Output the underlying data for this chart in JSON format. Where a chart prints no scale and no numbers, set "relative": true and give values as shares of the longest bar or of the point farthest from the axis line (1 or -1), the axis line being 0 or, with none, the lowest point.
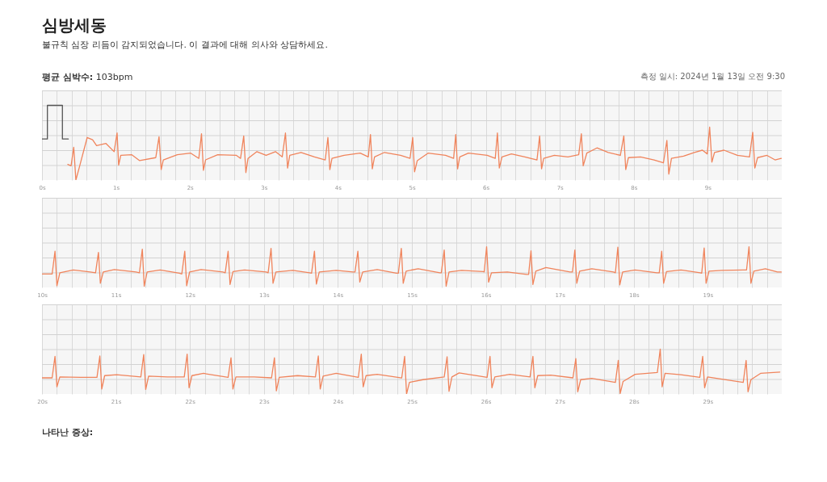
{
  "chart_data": [
    {
      "type": "line",
      "title": "심방세동",
      "subtitle": "불규칙 심장 리듬이 감지되었습니다. 이 결과에 대해 의사와 상담하세요.",
      "annotations": [
        "평균 심박수: 103bpm",
        "측정 일시: 2024년 1월 13일 오전 9:30"
      ],
      "relative": true,
      "grid": true,
      "xlim": [
        0,
        10
      ],
      "xticks": [
        {
          "value": 0,
          "label": "0s"
        },
        {
          "value": 0.2,
          "label": null
        },
        {
          "value": 0.4,
          "label": null
        },
        {
          "value": 0.6,
          "label": null
        },
        {
          "value": 0.8,
          "label": null
        },
        {
          "value": 1,
          "label": "1s"
        },
        {
          "value": 1.2,
          "label": null
        },
        {
          "value": 1.4,
          "label": null
        },
        {
          "value": 1.6,
          "label": null
        },
        {
          "value": 1.8,
          "label": null
        },
        {
          "value": 2,
          "label": "2s"
        },
        {
          "value": 2.2,
          "label": null
        },
        {
          "value": 2.4,
          "label": null
        },
        {
          "value": 2.6,
          "label": null
        },
        {
          "value": 2.8,
          "label": null
        },
        {
          "value": 3,
          "label": "3s"
        },
        {
          "value": 3.2,
          "label": null
        },
        {
          "value": 3.4,
          "label": null
        },
        {
          "value": 3.6,
          "label": null
        },
        {
          "value": 3.8,
          "label": null
        },
        {
          "value": 4,
          "label": "4s"
        },
        {
          "value": 4.2,
          "label": null
        },
        {
          "value": 4.4,
          "label": null
        },
        {
          "value": 4.6,
          "label": null
        },
        {
          "value": 4.8,
          "label": null
        },
        {
          "value": 5,
          "label": "5s"
        },
        {
          "value": 5.2,
          "label": null
        },
        {
          "value": 5.4,
          "label": null
        },
        {
          "value": 5.6,
          "label": null
        },
        {
          "value": 5.8,
          "label": null
        },
        {
          "value": 6,
          "label": "6s"
        },
        {
          "value": 6.2,
          "label": null
        },
        {
          "value": 6.4,
          "label": null
        },
        {
          "value": 6.6,
          "label": null
        },
        {
          "value": 6.8,
          "label": null
        },
        {
          "value": 7,
          "label": "7s"
        },
        {
          "value": 7.2,
          "label": null
        },
        {
          "value": 7.4,
          "label": null
        },
        {
          "value": 7.6,
          "label": null
        },
        {
          "value": 7.8,
          "label": null
        },
        {
          "value": 8,
          "label": "8s"
        },
        {
          "value": 8.2,
          "label": null
        },
        {
          "value": 8.4,
          "label": null
        },
        {
          "value": 8.6,
          "label": null
        },
        {
          "value": 8.8,
          "label": null
        },
        {
          "value": 9,
          "label": "9s"
        },
        {
          "value": 9.2,
          "label": null
        },
        {
          "value": 9.4,
          "label": null
        },
        {
          "value": 9.6,
          "label": null
        },
        {
          "value": 9.8,
          "label": null
        }
      ],
      "series": [
        {
          "color": "#555555",
          "x": [
            0,
            0.073,
            0.073,
            0.276,
            0.276,
            0.356
          ],
          "values": [
            0.55,
            0.55,
            1,
            1,
            0.55,
            0.55
          ]
        },
        {
          "color": "#f0845c",
          "x": [
            0.349,
            0.393,
            0.429,
            0.458,
            0.502,
            0.611,
            0.684,
            0.738,
            0.865,
            0.975,
            1.015,
            1.036,
            1.065,
            1.211,
            1.32,
            1.538,
            1.582,
            1.611,
            1.64,
            1.829,
            2.011,
            2.12,
            2.156,
            2.182,
            2.211,
            2.375,
            2.629,
            2.684,
            2.727,
            2.756,
            2.785,
            2.905,
            3.029,
            3.156,
            3.247,
            3.291,
            3.32,
            3.349,
            3.502,
            3.684,
            3.829,
            3.865,
            3.891,
            3.92,
            4.084,
            4.302,
            4.411,
            4.44,
            4.465,
            4.495,
            4.629,
            4.847,
            4.975,
            5.011,
            5.036,
            5.073,
            5.218,
            5.455,
            5.564,
            5.593,
            5.618,
            5.647,
            5.764,
            6.018,
            6.127,
            6.156,
            6.182,
            6.218,
            6.345,
            6.527,
            6.691,
            6.727,
            6.753,
            6.782,
            6.927,
            7.109,
            7.255,
            7.291,
            7.316,
            7.364,
            7.502,
            7.655,
            7.818,
            7.865,
            7.891,
            7.927,
            8.091,
            8.273,
            8.4,
            8.447,
            8.473,
            8.509,
            8.673,
            8.818,
            8.927,
            8.993,
            9.025,
            9.055,
            9.091,
            9.218,
            9.4,
            9.564,
            9.607,
            9.636,
            9.673,
            9.8,
            9.909,
            9.993
          ],
          "values": [
            0.21,
            0.19,
            0.44,
            0,
            0.16,
            0.57,
            0.54,
            0.46,
            0.49,
            0.38,
            0.63,
            0.2,
            0.33,
            0.34,
            0.26,
            0.3,
            0.58,
            0.14,
            0.27,
            0.34,
            0.36,
            0.29,
            0.62,
            0.13,
            0.27,
            0.34,
            0.33,
            0.29,
            0.59,
            0.1,
            0.29,
            0.38,
            0.33,
            0.38,
            0.31,
            0.63,
            0.16,
            0.33,
            0.37,
            0.31,
            0.27,
            0.57,
            0.14,
            0.29,
            0.33,
            0.36,
            0.31,
            0.61,
            0.15,
            0.31,
            0.37,
            0.33,
            0.29,
            0.57,
            0.11,
            0.26,
            0.36,
            0.33,
            0.29,
            0.61,
            0.15,
            0.31,
            0.36,
            0.33,
            0.29,
            0.63,
            0.16,
            0.31,
            0.35,
            0.31,
            0.27,
            0.59,
            0.15,
            0.29,
            0.33,
            0.31,
            0.34,
            0.62,
            0.19,
            0.36,
            0.43,
            0.37,
            0.33,
            0.59,
            0.14,
            0.3,
            0.31,
            0.27,
            0.23,
            0.53,
            0.08,
            0.29,
            0.32,
            0.37,
            0.4,
            0.35,
            0.71,
            0.24,
            0.37,
            0.4,
            0.33,
            0.31,
            0.64,
            0.16,
            0.3,
            0.33,
            0.27,
            0.29
          ]
        }
      ]
    },
    {
      "type": "line",
      "relative": true,
      "grid": true,
      "xlim": [
        10,
        20
      ],
      "xticks": [
        {
          "value": 10,
          "label": "10s"
        },
        {
          "value": 10.2,
          "label": null
        },
        {
          "value": 10.4,
          "label": null
        },
        {
          "value": 10.6,
          "label": null
        },
        {
          "value": 10.8,
          "label": null
        },
        {
          "value": 11,
          "label": "11s"
        },
        {
          "value": 11.2,
          "label": null
        },
        {
          "value": 11.4,
          "label": null
        },
        {
          "value": 11.6,
          "label": null
        },
        {
          "value": 11.8,
          "label": null
        },
        {
          "value": 12,
          "label": "12s"
        },
        {
          "value": 12.2,
          "label": null
        },
        {
          "value": 12.4,
          "label": null
        },
        {
          "value": 12.6,
          "label": null
        },
        {
          "value": 12.8,
          "label": null
        },
        {
          "value": 13,
          "label": "13s"
        },
        {
          "value": 13.2,
          "label": null
        },
        {
          "value": 13.4,
          "label": null
        },
        {
          "value": 13.6,
          "label": null
        },
        {
          "value": 13.8,
          "label": null
        },
        {
          "value": 14,
          "label": "14s"
        },
        {
          "value": 14.2,
          "label": null
        },
        {
          "value": 14.4,
          "label": null
        },
        {
          "value": 14.6,
          "label": null
        },
        {
          "value": 14.8,
          "label": null
        },
        {
          "value": 15,
          "label": "15s"
        },
        {
          "value": 15.2,
          "label": null
        },
        {
          "value": 15.4,
          "label": null
        },
        {
          "value": 15.6,
          "label": null
        },
        {
          "value": 15.8,
          "label": null
        },
        {
          "value": 16,
          "label": "16s"
        },
        {
          "value": 16.2,
          "label": null
        },
        {
          "value": 16.4,
          "label": null
        },
        {
          "value": 16.6,
          "label": null
        },
        {
          "value": 16.8,
          "label": null
        },
        {
          "value": 17,
          "label": "17s"
        },
        {
          "value": 17.2,
          "label": null
        },
        {
          "value": 17.4,
          "label": null
        },
        {
          "value": 17.6,
          "label": null
        },
        {
          "value": 17.8,
          "label": null
        },
        {
          "value": 18,
          "label": "18s"
        },
        {
          "value": 18.2,
          "label": null
        },
        {
          "value": 18.4,
          "label": null
        },
        {
          "value": 18.6,
          "label": null
        },
        {
          "value": 18.8,
          "label": null
        },
        {
          "value": 19,
          "label": "19s"
        },
        {
          "value": 19.2,
          "label": null
        },
        {
          "value": 19.4,
          "label": null
        },
        {
          "value": 19.6,
          "label": null
        },
        {
          "value": 19.8,
          "label": null
        }
      ],
      "series": [
        {
          "color": "#f0845c",
          "x": [
            10,
            10.137,
            10.176,
            10.202,
            10.241,
            10.424,
            10.652,
            10.724,
            10.763,
            10.789,
            10.828,
            10.978,
            11.271,
            11.317,
            11.356,
            11.382,
            11.421,
            11.597,
            11.858,
            11.89,
            11.93,
            11.956,
            11.995,
            12.151,
            12.445,
            12.477,
            12.516,
            12.542,
            12.582,
            12.738,
            13.031,
            13.057,
            13.096,
            13.123,
            13.162,
            13.39,
            13.618,
            13.644,
            13.683,
            13.709,
            13.748,
            13.977,
            14.205,
            14.231,
            14.27,
            14.296,
            14.335,
            14.531,
            14.792,
            14.817,
            14.857,
            14.883,
            14.922,
            15.085,
            15.378,
            15.398,
            15.437,
            15.463,
            15.502,
            15.671,
            15.965,
            15.978,
            16.01,
            16.037,
            16.076,
            16.291,
            16.551,
            16.578,
            16.61,
            16.636,
            16.675,
            16.812,
            17.138,
            17.171,
            17.203,
            17.229,
            17.268,
            17.432,
            17.725,
            17.751,
            17.784,
            17.81,
            17.849,
            18.018,
            18.312,
            18.344,
            18.377,
            18.403,
            18.442,
            18.638,
            18.898,
            18.918,
            18.951,
            18.977,
            19.016,
            19.192,
            19.485,
            19.524,
            19.557,
            19.583,
            19.622,
            19.778,
            19.941,
            19.993
          ],
          "values": [
            0.33,
            0.33,
            0.89,
            0.04,
            0.36,
            0.43,
            0.38,
            0.36,
            0.86,
            0.1,
            0.38,
            0.44,
            0.38,
            0.36,
            0.94,
            0.03,
            0.38,
            0.43,
            0.35,
            0.33,
            0.89,
            0.04,
            0.38,
            0.44,
            0.38,
            0.36,
            0.89,
            0.07,
            0.39,
            0.43,
            0.38,
            0.36,
            0.96,
            0.1,
            0.38,
            0.42,
            0.36,
            0.35,
            0.89,
            0.08,
            0.38,
            0.42,
            0.38,
            0.38,
            0.89,
            0.13,
            0.38,
            0.44,
            0.35,
            0.35,
            0.96,
            0.1,
            0.4,
            0.46,
            0.36,
            0.36,
            0.92,
            0.03,
            0.38,
            0.42,
            0.39,
            0.38,
            1,
            0.13,
            0.36,
            0.38,
            0.32,
            0.32,
            0.9,
            0.07,
            0.4,
            0.49,
            0.38,
            0.38,
            0.92,
            0.1,
            0.4,
            0.46,
            0.38,
            0.36,
            0.99,
            0.06,
            0.38,
            0.43,
            0.36,
            0.36,
            0.89,
            0.1,
            0.39,
            0.43,
            0.36,
            0.35,
            0.97,
            0.1,
            0.4,
            0.42,
            0.43,
            0.43,
            1,
            0.1,
            0.4,
            0.46,
            0.38,
            0.38
          ]
        }
      ]
    },
    {
      "type": "line",
      "relative": true,
      "grid": true,
      "xlim": [
        20,
        30
      ],
      "annotations": [
        "나타난 증상:"
      ],
      "xticks": [
        {
          "value": 20,
          "label": "20s"
        },
        {
          "value": 20.2,
          "label": null
        },
        {
          "value": 20.4,
          "label": null
        },
        {
          "value": 20.6,
          "label": null
        },
        {
          "value": 20.8,
          "label": null
        },
        {
          "value": 21,
          "label": "21s"
        },
        {
          "value": 21.2,
          "label": null
        },
        {
          "value": 21.4,
          "label": null
        },
        {
          "value": 21.6,
          "label": null
        },
        {
          "value": 21.8,
          "label": null
        },
        {
          "value": 22,
          "label": "22s"
        },
        {
          "value": 22.2,
          "label": null
        },
        {
          "value": 22.4,
          "label": null
        },
        {
          "value": 22.6,
          "label": null
        },
        {
          "value": 22.8,
          "label": null
        },
        {
          "value": 23,
          "label": "23s"
        },
        {
          "value": 23.2,
          "label": null
        },
        {
          "value": 23.4,
          "label": null
        },
        {
          "value": 23.6,
          "label": null
        },
        {
          "value": 23.8,
          "label": null
        },
        {
          "value": 24,
          "label": "24s"
        },
        {
          "value": 24.2,
          "label": null
        },
        {
          "value": 24.4,
          "label": null
        },
        {
          "value": 24.6,
          "label": null
        },
        {
          "value": 24.8,
          "label": null
        },
        {
          "value": 25,
          "label": "25s"
        },
        {
          "value": 25.2,
          "label": null
        },
        {
          "value": 25.4,
          "label": null
        },
        {
          "value": 25.6,
          "label": null
        },
        {
          "value": 25.8,
          "label": null
        },
        {
          "value": 26,
          "label": "26s"
        },
        {
          "value": 26.2,
          "label": null
        },
        {
          "value": 26.4,
          "label": null
        },
        {
          "value": 26.6,
          "label": null
        },
        {
          "value": 26.8,
          "label": null
        },
        {
          "value": 27,
          "label": "27s"
        },
        {
          "value": 27.2,
          "label": null
        },
        {
          "value": 27.4,
          "label": null
        },
        {
          "value": 27.6,
          "label": null
        },
        {
          "value": 27.8,
          "label": null
        },
        {
          "value": 28,
          "label": "28s"
        },
        {
          "value": 28.2,
          "label": null
        },
        {
          "value": 28.4,
          "label": null
        },
        {
          "value": 28.6,
          "label": null
        },
        {
          "value": 28.8,
          "label": null
        },
        {
          "value": 29,
          "label": "29s"
        },
        {
          "value": 29.2,
          "label": null
        },
        {
          "value": 29.4,
          "label": null
        },
        {
          "value": 29.6,
          "label": null
        },
        {
          "value": 29.8,
          "label": null
        }
      ],
      "series": [
        {
          "color": "#f0845c",
          "x": [
            20,
            20.137,
            20.176,
            20.202,
            20.241,
            20.522,
            20.743,
            20.782,
            20.808,
            20.847,
            21.01,
            21.336,
            21.375,
            21.402,
            21.441,
            21.695,
            21.923,
            21.962,
            21.988,
            22.027,
            22.184,
            22.516,
            22.555,
            22.581,
            22.621,
            22.868,
            23.103,
            23.142,
            23.168,
            23.207,
            23.455,
            23.696,
            23.735,
            23.761,
            23.8,
            23.977,
            24.276,
            24.316,
            24.342,
            24.381,
            24.531,
            24.863,
            24.902,
            24.928,
            24.967,
            25.15,
            25.437,
            25.476,
            25.502,
            25.541,
            25.639,
            26.017,
            26.056,
            26.082,
            26.121,
            26.323,
            26.597,
            26.636,
            26.662,
            26.701,
            26.877,
            27.177,
            27.216,
            27.242,
            27.282,
            27.432,
            27.751,
            27.79,
            27.816,
            27.855,
            28.018,
            28.318,
            28.357,
            28.383,
            28.422,
            28.638,
            28.892,
            28.931,
            28.957,
            28.996,
            29.192,
            29.479,
            29.518,
            29.544,
            29.583,
            29.713,
            29.974
          ],
          "values": [
            0.36,
            0.36,
            0.84,
            0.16,
            0.38,
            0.37,
            0.37,
            0.85,
            0.11,
            0.41,
            0.43,
            0.38,
            0.88,
            0.1,
            0.4,
            0.38,
            0.38,
            0.89,
            0.14,
            0.41,
            0.46,
            0.37,
            0.81,
            0.11,
            0.38,
            0.38,
            0.36,
            0.81,
            0.07,
            0.37,
            0.41,
            0.38,
            0.85,
            0.11,
            0.4,
            0.46,
            0.37,
            0.89,
            0.16,
            0.41,
            0.44,
            0.36,
            0.84,
            0,
            0.26,
            0.32,
            0.38,
            0.83,
            0.06,
            0.38,
            0.47,
            0.37,
            0.84,
            0.14,
            0.38,
            0.44,
            0.38,
            0.84,
            0.14,
            0.41,
            0.42,
            0.36,
            0.79,
            0.05,
            0.32,
            0.35,
            0.26,
            0.75,
            0.01,
            0.28,
            0.44,
            0.48,
            1,
            0.16,
            0.46,
            0.43,
            0.37,
            0.84,
            0.14,
            0.38,
            0.33,
            0.26,
            0.75,
            0.05,
            0.32,
            0.46,
            0.49
          ]
        }
      ]
    }
  ]
}
